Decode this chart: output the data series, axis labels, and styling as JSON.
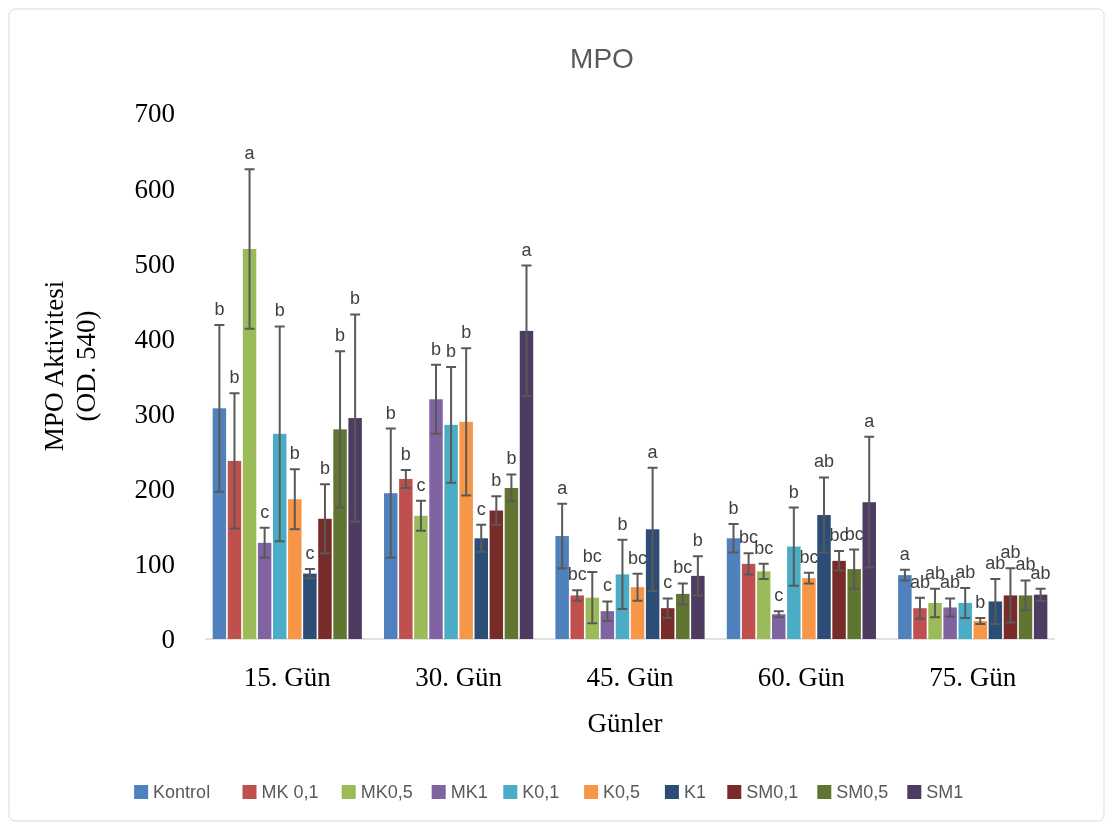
{
  "chart_data": {
    "type": "bar",
    "title": "MPO",
    "xlabel": "Günler",
    "ylabel": "MPO Aktivitesi\n(OD. 540)",
    "categories": [
      "15. Gün",
      "30. Gün",
      "45. Gün",
      "60. Gün",
      "75. Gün"
    ],
    "ylim": [
      0,
      700
    ],
    "yticks": [
      0,
      100,
      200,
      300,
      400,
      500,
      600,
      700
    ],
    "grid": false,
    "legend": "bottom",
    "annotations": [
      "b",
      "b",
      "a",
      "c",
      "b",
      "b",
      "c",
      "b",
      "b",
      "b",
      "b",
      "b",
      "c",
      "b",
      "b",
      "b",
      "c",
      "b",
      "b",
      "a",
      "a",
      "bc",
      "bc",
      "c",
      "b",
      "bc",
      "a",
      "c",
      "bc",
      "b",
      "b",
      "bc",
      "bc",
      "c",
      "b",
      "bc",
      "ab",
      "bc",
      "bc",
      "a",
      "a",
      "ab",
      "ab",
      "ab",
      "ab",
      "b",
      "ab",
      "ab",
      "ab",
      "ab"
    ],
    "series": [
      {
        "name": "Kontrol",
        "color": "#4f81bd",
        "values": [
          307,
          194,
          137,
          134,
          85
        ],
        "errors": [
          111,
          86,
          43,
          19,
          7
        ]
      },
      {
        "name": "MK 0,1",
        "color": "#c0504d",
        "values": [
          237,
          213,
          58,
          100,
          41
        ],
        "errors": [
          90,
          12,
          7,
          14,
          14
        ]
      },
      {
        "name": "MK0,5",
        "color": "#9bbb59",
        "values": [
          519,
          164,
          55,
          90,
          48
        ],
        "errors": [
          106,
          20,
          34,
          10,
          19
        ]
      },
      {
        "name": "MK1",
        "color": "#8064a2",
        "values": [
          128,
          319,
          37,
          33,
          42
        ],
        "errors": [
          20,
          46,
          13,
          4,
          12
        ]
      },
      {
        "name": "K0,1",
        "color": "#4bacc6",
        "values": [
          273,
          285,
          86,
          123,
          48
        ],
        "errors": [
          143,
          77,
          46,
          52,
          20
        ]
      },
      {
        "name": "K0,5",
        "color": "#f79646",
        "values": [
          186,
          289,
          69,
          81,
          24
        ],
        "errors": [
          40,
          98,
          18,
          7,
          4
        ]
      },
      {
        "name": "K1",
        "color": "#2c4d75",
        "values": [
          87,
          134,
          146,
          165,
          50
        ],
        "errors": [
          6,
          18,
          82,
          50,
          30
        ]
      },
      {
        "name": "SM0,1",
        "color": "#772c2a",
        "values": [
          160,
          171,
          41,
          104,
          58
        ],
        "errors": [
          46,
          19,
          13,
          13,
          36
        ]
      },
      {
        "name": "SM0,5",
        "color": "#5f7530",
        "values": [
          279,
          201,
          60,
          93,
          58
        ],
        "errors": [
          104,
          18,
          14,
          26,
          20
        ]
      },
      {
        "name": "SM1",
        "color": "#4d3b62",
        "values": [
          294,
          410,
          84,
          182,
          59
        ],
        "errors": [
          138,
          87,
          26,
          87,
          8
        ]
      }
    ]
  }
}
